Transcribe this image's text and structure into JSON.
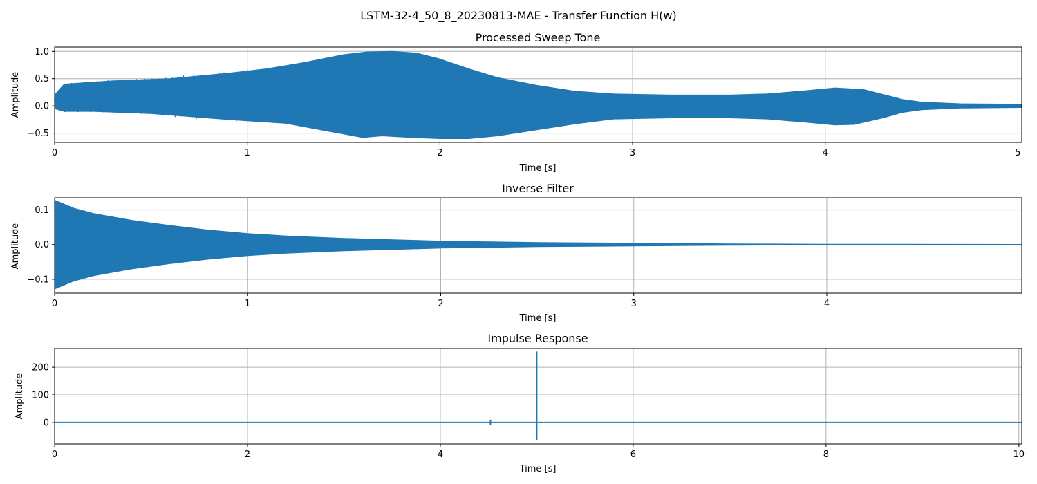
{
  "figure": {
    "suptitle": "LSTM-32-4_50_8_20230813-MAE - Transfer Function H(w)"
  },
  "colors": {
    "series": "#1f77b4",
    "grid": "#b0b0b0",
    "axes": "#000000",
    "background": "#ffffff"
  },
  "chart_data": [
    {
      "type": "line",
      "title": "Processed Sweep Tone",
      "xlabel": "Time [s]",
      "ylabel": "Amplitude",
      "xlim": [
        0,
        5.02
      ],
      "ylim": [
        -0.67,
        1.08
      ],
      "xticks": [
        0,
        1,
        2,
        3,
        4,
        5
      ],
      "yticks": [
        -0.5,
        0.0,
        0.5,
        1.0
      ],
      "grid": true,
      "series": [
        {
          "kind": "sweep_envelope",
          "envelope_upper": [
            [
              0,
              0.2
            ],
            [
              0.05,
              0.4
            ],
            [
              0.3,
              0.46
            ],
            [
              0.6,
              0.5
            ],
            [
              0.9,
              0.6
            ],
            [
              1.1,
              0.68
            ],
            [
              1.3,
              0.8
            ],
            [
              1.5,
              0.94
            ],
            [
              1.62,
              0.99
            ],
            [
              1.75,
              1.0
            ],
            [
              1.88,
              0.97
            ],
            [
              2.0,
              0.86
            ],
            [
              2.15,
              0.68
            ],
            [
              2.3,
              0.52
            ],
            [
              2.5,
              0.38
            ],
            [
              2.7,
              0.27
            ],
            [
              2.9,
              0.22
            ],
            [
              3.2,
              0.2
            ],
            [
              3.5,
              0.2
            ],
            [
              3.7,
              0.22
            ],
            [
              3.9,
              0.28
            ],
            [
              4.05,
              0.33
            ],
            [
              4.2,
              0.3
            ],
            [
              4.3,
              0.21
            ],
            [
              4.4,
              0.12
            ],
            [
              4.5,
              0.07
            ],
            [
              4.7,
              0.04
            ],
            [
              5.02,
              0.03
            ]
          ],
          "envelope_lower": [
            [
              0,
              -0.05
            ],
            [
              0.05,
              -0.1
            ],
            [
              0.2,
              -0.1
            ],
            [
              0.5,
              -0.14
            ],
            [
              0.9,
              -0.25
            ],
            [
              1.2,
              -0.32
            ],
            [
              1.4,
              -0.45
            ],
            [
              1.6,
              -0.58
            ],
            [
              1.7,
              -0.55
            ],
            [
              1.85,
              -0.58
            ],
            [
              2.0,
              -0.6
            ],
            [
              2.15,
              -0.6
            ],
            [
              2.3,
              -0.55
            ],
            [
              2.5,
              -0.44
            ],
            [
              2.7,
              -0.33
            ],
            [
              2.9,
              -0.24
            ],
            [
              3.2,
              -0.22
            ],
            [
              3.5,
              -0.22
            ],
            [
              3.7,
              -0.24
            ],
            [
              3.9,
              -0.3
            ],
            [
              4.05,
              -0.35
            ],
            [
              4.15,
              -0.34
            ],
            [
              4.3,
              -0.22
            ],
            [
              4.4,
              -0.12
            ],
            [
              4.5,
              -0.07
            ],
            [
              4.7,
              -0.04
            ],
            [
              5.02,
              -0.03
            ]
          ],
          "center": 0.0
        }
      ]
    },
    {
      "type": "line",
      "title": "Inverse Filter",
      "xlabel": "Time [s]",
      "ylabel": "Amplitude",
      "xlim": [
        0,
        5.01
      ],
      "ylim": [
        -0.14,
        0.135
      ],
      "xticks": [
        0,
        1,
        2,
        3,
        4
      ],
      "yticks": [
        -0.1,
        0.0,
        0.1
      ],
      "grid": true,
      "series": [
        {
          "kind": "decaying_envelope",
          "envelope_upper": [
            [
              0,
              0.128
            ],
            [
              0.1,
              0.105
            ],
            [
              0.2,
              0.09
            ],
            [
              0.4,
              0.07
            ],
            [
              0.6,
              0.055
            ],
            [
              0.8,
              0.042
            ],
            [
              1.0,
              0.032
            ],
            [
              1.2,
              0.025
            ],
            [
              1.5,
              0.018
            ],
            [
              2.0,
              0.01
            ],
            [
              2.5,
              0.006
            ],
            [
              3.0,
              0.004
            ],
            [
              3.5,
              0.002
            ],
            [
              4.0,
              0.001
            ],
            [
              5.01,
              0.0005
            ]
          ],
          "envelope_lower": [
            [
              0,
              -0.128
            ],
            [
              0.1,
              -0.105
            ],
            [
              0.2,
              -0.09
            ],
            [
              0.4,
              -0.07
            ],
            [
              0.6,
              -0.055
            ],
            [
              0.8,
              -0.042
            ],
            [
              1.0,
              -0.032
            ],
            [
              1.2,
              -0.025
            ],
            [
              1.5,
              -0.018
            ],
            [
              2.0,
              -0.01
            ],
            [
              2.5,
              -0.006
            ],
            [
              3.0,
              -0.004
            ],
            [
              3.5,
              -0.002
            ],
            [
              4.0,
              -0.001
            ],
            [
              5.01,
              -0.0005
            ]
          ],
          "center": 0.0
        }
      ]
    },
    {
      "type": "line",
      "title": "Impulse Response",
      "xlabel": "Time [s]",
      "ylabel": "Amplitude",
      "xlim": [
        0,
        10.03
      ],
      "ylim": [
        -78,
        268
      ],
      "xticks": [
        0,
        2,
        4,
        6,
        8,
        10
      ],
      "yticks": [
        0,
        100,
        200
      ],
      "grid": true,
      "series": [
        {
          "kind": "impulse",
          "baseline": 0,
          "spikes": [
            {
              "x": 3.74,
              "max": 1.5,
              "min": -1.0
            },
            {
              "x": 4.02,
              "max": 2.0,
              "min": -2.0
            },
            {
              "x": 4.22,
              "max": 2.0,
              "min": -1.5
            },
            {
              "x": 4.52,
              "max": 10.0,
              "min": -8.0
            },
            {
              "x": 5.0,
              "max": 257.0,
              "min": -65.0
            }
          ]
        }
      ]
    }
  ]
}
